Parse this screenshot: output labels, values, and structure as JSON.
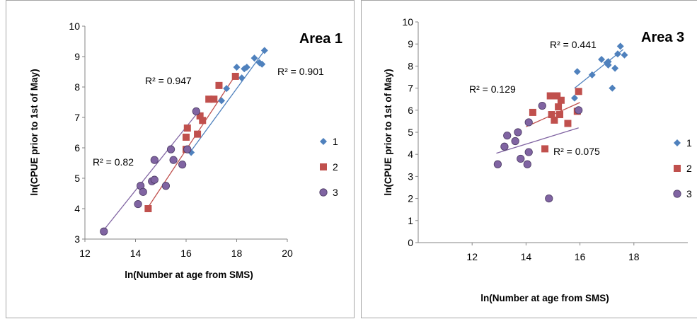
{
  "chart_data": [
    {
      "type": "scatter",
      "title": "Area 1",
      "xlabel": "ln(Number at age from SMS)",
      "ylabel": "ln(CPUE prior to 1st of May)",
      "xlim": [
        12,
        20
      ],
      "ylim": [
        3,
        10
      ],
      "xticks": [
        "12",
        "14",
        "16",
        "18",
        "20"
      ],
      "yticks": [
        "3",
        "4",
        "5",
        "6",
        "7",
        "8",
        "9",
        "10"
      ],
      "grid": false,
      "legend": "right",
      "series": [
        {
          "name": "1",
          "marker": "diamond",
          "color": "#4f81bd",
          "r2_label": "R² = 0.901",
          "trend": [
            [
              16.2,
              5.9
            ],
            [
              19.1,
              9.2
            ]
          ],
          "points": [
            [
              16.2,
              5.85
            ],
            [
              17.4,
              7.55
            ],
            [
              17.6,
              7.95
            ],
            [
              18.0,
              8.65
            ],
            [
              18.2,
              8.3
            ],
            [
              18.3,
              8.6
            ],
            [
              18.4,
              8.65
            ],
            [
              18.7,
              8.95
            ],
            [
              18.9,
              8.8
            ],
            [
              19.0,
              8.75
            ],
            [
              19.1,
              9.2
            ]
          ]
        },
        {
          "name": "2",
          "marker": "square",
          "color": "#c0504d",
          "r2_label": "R² = 0.947",
          "trend": [
            [
              14.5,
              4.05
            ],
            [
              18.0,
              8.45
            ]
          ],
          "points": [
            [
              14.5,
              4.0
            ],
            [
              16.0,
              5.95
            ],
            [
              16.0,
              6.35
            ],
            [
              16.05,
              6.65
            ],
            [
              16.45,
              6.45
            ],
            [
              16.55,
              7.05
            ],
            [
              16.65,
              6.9
            ],
            [
              16.9,
              7.6
            ],
            [
              17.1,
              7.6
            ],
            [
              17.3,
              8.05
            ],
            [
              17.95,
              8.35
            ]
          ]
        },
        {
          "name": "3",
          "marker": "circle",
          "color": "#8064a2",
          "r2_label": "R² = 0.82",
          "trend": [
            [
              12.7,
              3.25
            ],
            [
              16.5,
              7.2
            ]
          ],
          "points": [
            [
              12.75,
              3.25
            ],
            [
              14.1,
              4.15
            ],
            [
              14.2,
              4.75
            ],
            [
              14.3,
              4.55
            ],
            [
              14.65,
              4.9
            ],
            [
              14.75,
              4.95
            ],
            [
              14.75,
              5.6
            ],
            [
              15.2,
              4.75
            ],
            [
              15.4,
              5.95
            ],
            [
              15.5,
              5.6
            ],
            [
              15.85,
              5.45
            ],
            [
              16.05,
              5.95
            ],
            [
              16.4,
              7.2
            ]
          ]
        }
      ]
    },
    {
      "type": "scatter",
      "title": "Area 3",
      "xlabel": "ln(Number at age from SMS)",
      "ylabel": "ln(CPUE prior to 1st of May)",
      "xlim": [
        10,
        20
      ],
      "ylim": [
        0,
        10
      ],
      "xticks": [
        "12",
        "14",
        "16",
        "18"
      ],
      "yticks": [
        "0",
        "1",
        "2",
        "3",
        "4",
        "5",
        "6",
        "7",
        "8",
        "9",
        "10"
      ],
      "grid": false,
      "legend": "right",
      "series": [
        {
          "name": "1",
          "marker": "diamond",
          "color": "#4f81bd",
          "r2_label": "R² = 0.441",
          "trend": [
            [
              15.8,
              7.0
            ],
            [
              17.6,
              8.75
            ]
          ],
          "points": [
            [
              15.8,
              6.55
            ],
            [
              15.9,
              7.75
            ],
            [
              16.45,
              7.6
            ],
            [
              16.8,
              8.3
            ],
            [
              17.0,
              8.15
            ],
            [
              17.05,
              8.05
            ],
            [
              17.05,
              8.2
            ],
            [
              17.2,
              7.0
            ],
            [
              17.3,
              7.9
            ],
            [
              17.4,
              8.55
            ],
            [
              17.5,
              8.9
            ],
            [
              17.65,
              8.5
            ]
          ]
        },
        {
          "name": "2",
          "marker": "square",
          "color": "#c0504d",
          "r2_label": "R² = 0.129",
          "trend": [
            [
              14.0,
              5.25
            ],
            [
              16.0,
              6.35
            ]
          ],
          "points": [
            [
              14.25,
              5.9
            ],
            [
              14.7,
              4.25
            ],
            [
              14.9,
              6.65
            ],
            [
              14.95,
              5.8
            ],
            [
              15.05,
              5.55
            ],
            [
              15.15,
              6.65
            ],
            [
              15.2,
              6.15
            ],
            [
              15.25,
              5.8
            ],
            [
              15.3,
              6.45
            ],
            [
              15.55,
              5.4
            ],
            [
              15.9,
              5.95
            ],
            [
              15.95,
              6.85
            ]
          ]
        },
        {
          "name": "3",
          "marker": "circle",
          "color": "#8064a2",
          "r2_label": "R² = 0.075",
          "trend": [
            [
              12.9,
              4.05
            ],
            [
              15.95,
              5.2
            ]
          ],
          "points": [
            [
              12.95,
              3.55
            ],
            [
              13.2,
              4.35
            ],
            [
              13.3,
              4.85
            ],
            [
              13.6,
              4.6
            ],
            [
              13.7,
              5.0
            ],
            [
              13.8,
              3.8
            ],
            [
              14.05,
              3.55
            ],
            [
              14.1,
              4.1
            ],
            [
              14.1,
              5.45
            ],
            [
              14.6,
              6.2
            ],
            [
              14.85,
              2.0
            ],
            [
              15.95,
              6.0
            ]
          ]
        }
      ]
    }
  ]
}
